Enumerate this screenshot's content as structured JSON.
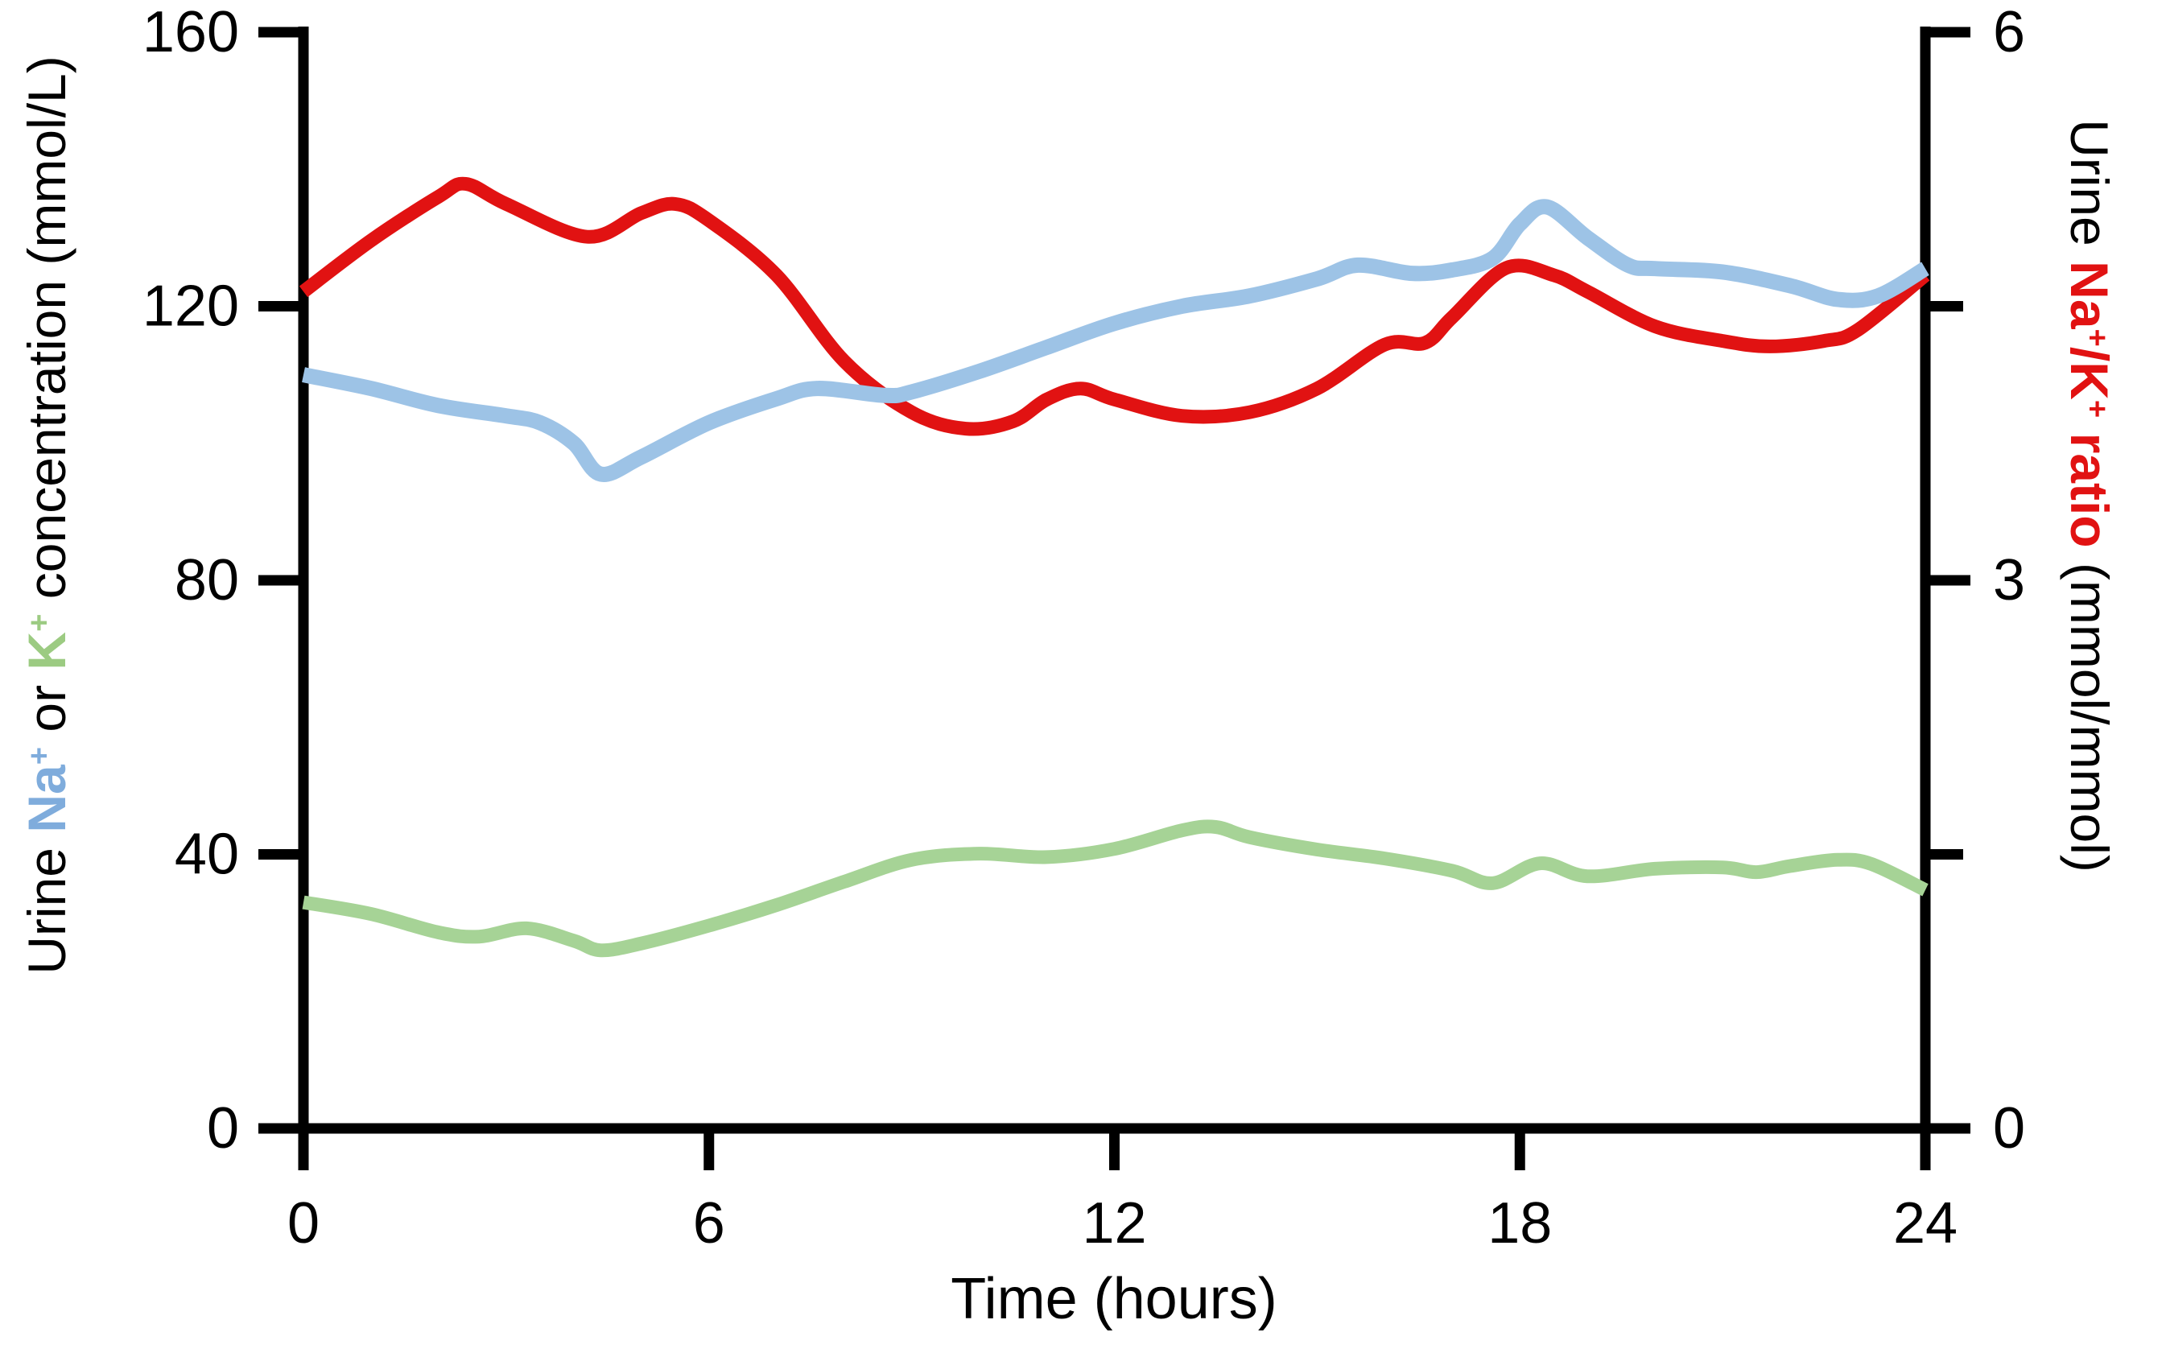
{
  "figure_type": "dual-axis smooth line chart",
  "titles": {
    "x_axis_title": "Time (hours)",
    "y_left_title_plain": "Urine Na+ or K+ concentration (mmol/L)",
    "y_right_title_plain": "Urine Na+/K+ ratio (mmol/mmol)",
    "y_left_segments": [
      {
        "t": "Urine "
      },
      {
        "t": "Na",
        "b": 1,
        "c": "#7FACDC"
      },
      {
        "t": "+",
        "b": 1,
        "c": "#7FACDC",
        "sup": 1
      },
      {
        "t": " or "
      },
      {
        "t": "K",
        "b": 1,
        "c": "#9CCB82"
      },
      {
        "t": "+",
        "b": 1,
        "c": "#9CCB82",
        "sup": 1
      },
      {
        "t": " concentration (mmol/L)"
      }
    ],
    "y_right_segments": [
      {
        "t": "Urine "
      },
      {
        "t": "Na",
        "b": 1,
        "c": "#E11212"
      },
      {
        "t": "+",
        "b": 1,
        "c": "#E11212",
        "sup": 1
      },
      {
        "t": "/K",
        "b": 1,
        "c": "#E11212"
      },
      {
        "t": "+",
        "b": 1,
        "c": "#E11212",
        "sup": 1
      },
      {
        "t": " ratio",
        "b": 1,
        "c": "#E11212"
      },
      {
        "t": " (mmol/mmol)"
      }
    ]
  },
  "colors": {
    "na_line": "#9DC3E6",
    "k_line": "#A6D396",
    "ratio_line": "#E11212",
    "axis": "#000000"
  },
  "chart_data": {
    "type": "line",
    "grid": false,
    "legend": "none (series identified by colored words in axis titles)",
    "xlabel": "Time (hours)",
    "x_axis": {
      "min": 0,
      "max": 24,
      "ticks": [
        0,
        6,
        12,
        18,
        24
      ]
    },
    "y_axis_left": {
      "label": "Urine Na+ or K+ concentration (mmol/L)",
      "min": 0,
      "max": 160,
      "ticks": [
        0,
        40,
        80,
        120,
        160
      ]
    },
    "y_axis_right": {
      "label": "Urine Na+/K+ ratio (mmol/mmol)",
      "min": 0,
      "max": 6,
      "ticks": [
        0,
        3,
        6
      ],
      "minor_ticks": [
        1.5,
        4.5
      ]
    },
    "series": [
      {
        "key": "ratio",
        "name": "Urine Na+/K+ ratio",
        "axis": "right",
        "color": "#E11212",
        "x": [
          0,
          1,
          2,
          2.4,
          3,
          4.2,
          5,
          5.5,
          6,
          7,
          8,
          9,
          9.8,
          10.5,
          11,
          11.5,
          12,
          13,
          14,
          15,
          16,
          16.6,
          17,
          17.8,
          18.5,
          19,
          20,
          21,
          21.7,
          22.5,
          23,
          24
        ],
        "y": [
          4.58,
          4.86,
          5.1,
          5.17,
          5.06,
          4.88,
          5.01,
          5.06,
          4.97,
          4.67,
          4.2,
          3.92,
          3.83,
          3.87,
          3.99,
          4.05,
          3.99,
          3.9,
          3.92,
          4.05,
          4.29,
          4.3,
          4.44,
          4.71,
          4.67,
          4.58,
          4.39,
          4.31,
          4.28,
          4.31,
          4.37,
          4.67
        ]
      },
      {
        "key": "na",
        "name": "Urine Na+ concentration",
        "axis": "left",
        "color": "#9DC3E6",
        "x": [
          0,
          1,
          2,
          3,
          3.5,
          4,
          4.4,
          5,
          6,
          7,
          7.6,
          8.6,
          9,
          10,
          11,
          12,
          13,
          14,
          15,
          15.6,
          16.4,
          17,
          17.6,
          18,
          18.4,
          19,
          19.6,
          20,
          21,
          22,
          22.7,
          23.3,
          24
        ],
        "y": [
          110,
          108,
          105.5,
          104,
          103,
          100,
          95.5,
          98,
          103,
          106.5,
          108,
          107,
          107.5,
          110.5,
          114,
          117.5,
          120,
          121.5,
          124,
          126,
          124.8,
          125.3,
          127,
          132,
          134.5,
          130,
          126,
          125.5,
          125,
          123,
          121,
          121.5,
          125.5
        ]
      },
      {
        "key": "k",
        "name": "Urine K+ concentration",
        "axis": "left",
        "color": "#A6D396",
        "x": [
          0,
          1,
          2,
          2.6,
          3.3,
          4,
          4.4,
          5,
          6,
          7,
          8,
          9,
          10,
          11,
          12,
          13,
          13.5,
          14,
          15,
          16,
          17,
          17.6,
          18.3,
          19,
          20,
          21,
          21.5,
          22,
          22.7,
          23.2,
          24
        ],
        "y": [
          33,
          31.3,
          28.6,
          28,
          29.2,
          27.4,
          26,
          27,
          29.6,
          32.6,
          36,
          39.2,
          40.1,
          39.6,
          40.8,
          43.5,
          44,
          42.5,
          40.7,
          39.4,
          37.6,
          35.8,
          38.7,
          36.8,
          37.9,
          38.1,
          37.4,
          38.3,
          39.2,
          38.6,
          34.8
        ]
      }
    ]
  }
}
